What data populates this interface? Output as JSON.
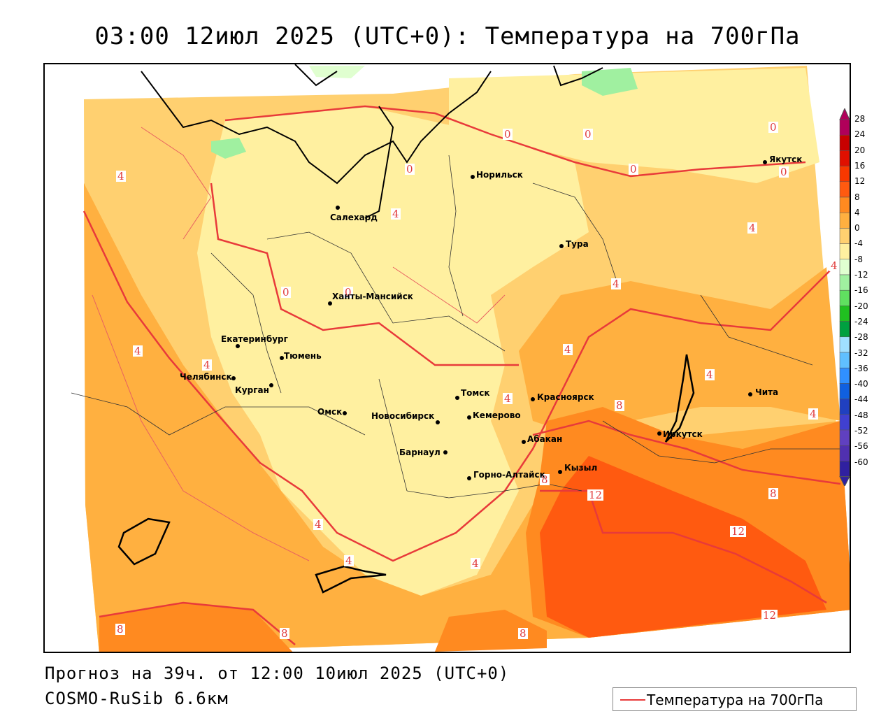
{
  "title": "03:00 12июл 2025 (UTC+0): Температура на 700гПа",
  "footer": {
    "forecast": "Прогноз на 39ч. от 12:00 10июл 2025 (UTC+0)",
    "model": "COSMO-RuSib 6.6км"
  },
  "legend": {
    "label": "Температура на 700гПа",
    "line_color": "#e83a3a"
  },
  "colorbar": {
    "labels": [
      "28",
      "24",
      "20",
      "16",
      "12",
      "8",
      "4",
      "0",
      "-4",
      "-8",
      "-12",
      "-16",
      "-20",
      "-24",
      "-28",
      "-32",
      "-36",
      "-40",
      "-44",
      "-48",
      "-52",
      "-56",
      "-60"
    ],
    "colors": [
      "#b0005a",
      "#c80000",
      "#e01000",
      "#f83800",
      "#ff5a10",
      "#ff8a20",
      "#ffb040",
      "#ffd070",
      "#fff0a0",
      "#e0ffd0",
      "#a0f0a0",
      "#60e060",
      "#20c020",
      "#00a040",
      "#a0e0ff",
      "#60c0ff",
      "#3090ff",
      "#1060e0",
      "#2040c0",
      "#4040d0",
      "#6040c0",
      "#5030b0",
      "#3020a0"
    ]
  },
  "cities": [
    {
      "name": "Норильск",
      "icon": "city-dot-icon"
    },
    {
      "name": "Якутск",
      "icon": "city-dot-icon"
    },
    {
      "name": "Салехард",
      "icon": "city-dot-icon"
    },
    {
      "name": "Тура",
      "icon": "city-dot-icon"
    },
    {
      "name": "Ханты-Мансийск",
      "icon": "city-dot-icon"
    },
    {
      "name": "Екатеринбург",
      "icon": "city-dot-icon"
    },
    {
      "name": "Тюмень",
      "icon": "city-dot-icon"
    },
    {
      "name": "Челябинск",
      "icon": "city-dot-icon"
    },
    {
      "name": "Курган",
      "icon": "city-dot-icon"
    },
    {
      "name": "Омск",
      "icon": "city-dot-icon"
    },
    {
      "name": "Томск",
      "icon": "city-dot-icon"
    },
    {
      "name": "Красноярск",
      "icon": "city-dot-icon"
    },
    {
      "name": "Новосибирск",
      "icon": "city-dot-icon"
    },
    {
      "name": "Кемерово",
      "icon": "city-dot-icon"
    },
    {
      "name": "Абакан",
      "icon": "city-dot-icon"
    },
    {
      "name": "Барнаул",
      "icon": "city-dot-icon"
    },
    {
      "name": "Иркутск",
      "icon": "city-dot-icon"
    },
    {
      "name": "Чита",
      "icon": "city-dot-icon"
    },
    {
      "name": "Кызыл",
      "icon": "city-dot-icon"
    },
    {
      "name": "Горно-Алтайск",
      "icon": "city-dot-icon"
    }
  ],
  "contour_labels": [
    "4",
    "0",
    "0",
    "0",
    "0",
    "0",
    "0",
    "4",
    "4",
    "0",
    "0",
    "4",
    "4",
    "4",
    "4",
    "4",
    "4",
    "8",
    "4",
    "4",
    "8",
    "12",
    "8",
    "12",
    "4",
    "4",
    "4",
    "8",
    "8",
    "8",
    "12"
  ]
}
